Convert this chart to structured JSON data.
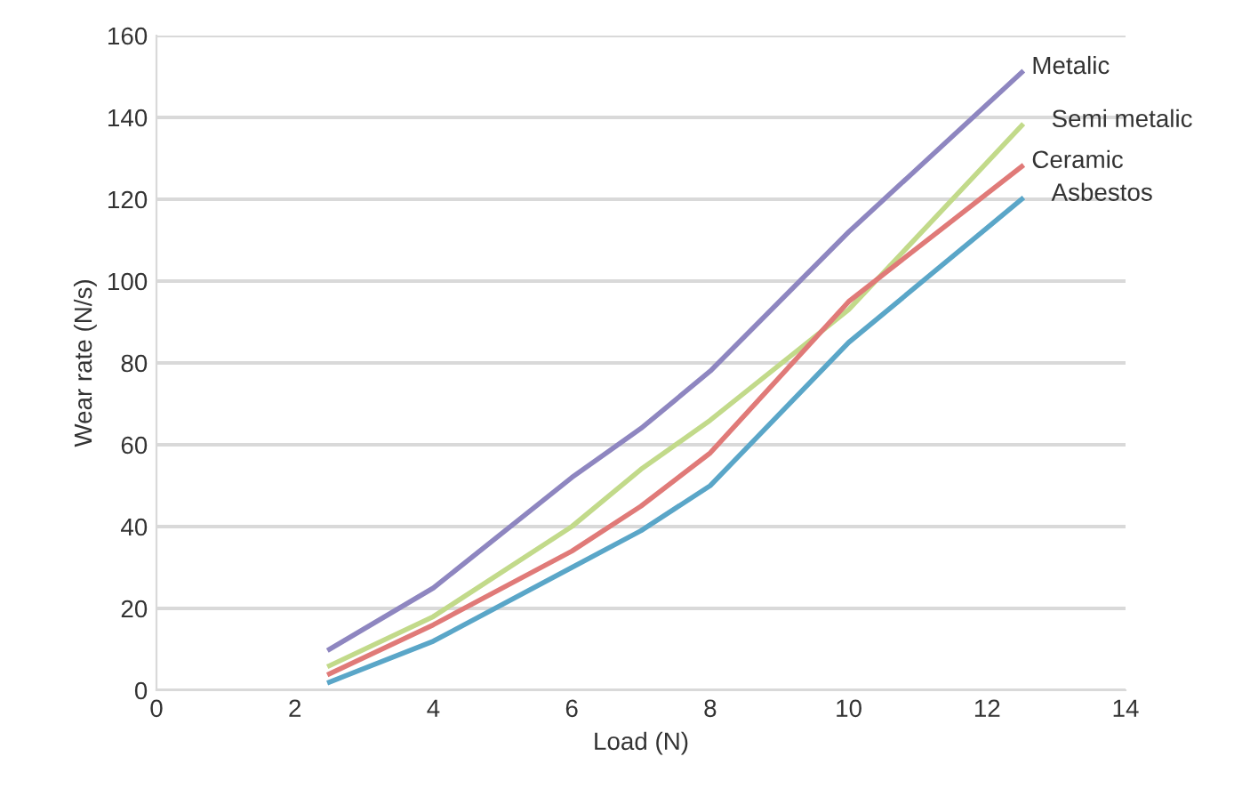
{
  "chart_data": {
    "type": "line",
    "xlabel": "Load (N)",
    "ylabel": "Wear rate (N/s)",
    "xlim": [
      0,
      14
    ],
    "xticks": [
      0,
      2,
      4,
      6,
      8,
      10,
      12,
      14
    ],
    "ylim": [
      0,
      160
    ],
    "yticks": [
      0,
      20,
      40,
      60,
      80,
      100,
      120,
      140,
      160
    ],
    "grid": "y",
    "legend": false,
    "marker": "none",
    "line_style": "solid",
    "x": [
      2.5,
      4,
      6,
      7,
      8,
      10,
      12.5
    ],
    "series": [
      {
        "name": "Metalic",
        "color": "#8e86c0",
        "values": [
          10,
          25,
          52,
          64,
          78,
          112,
          151
        ]
      },
      {
        "name": "Semi metalic",
        "color": "#c2da8a",
        "values": [
          6,
          18,
          40,
          54,
          66,
          93,
          138
        ]
      },
      {
        "name": "Ceramic",
        "color": "#e07a78",
        "values": [
          4,
          16,
          34,
          45,
          58,
          95,
          128
        ]
      },
      {
        "name": "Asbestos",
        "color": "#5aa6c8",
        "values": [
          2,
          12,
          30,
          39,
          50,
          85,
          120
        ]
      }
    ]
  }
}
